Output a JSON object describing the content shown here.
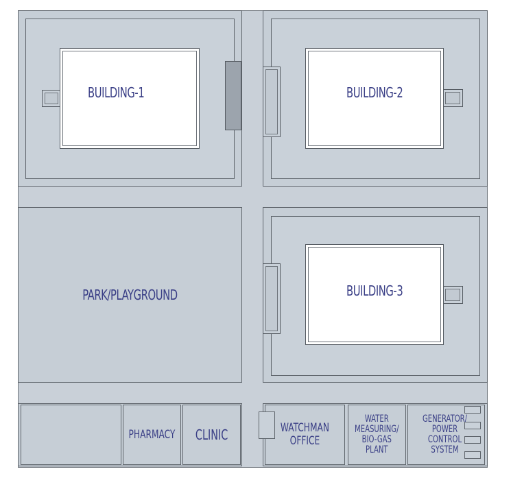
{
  "buildings": {
    "b1": "BUILDING-1",
    "b2": "BUILDING-2",
    "b3": "BUILDING-3"
  },
  "park": "PARK/PLAYGROUND",
  "rooms": {
    "pharmacy": "PHARMACY",
    "clinic": "CLINIC",
    "watchman": [
      "WATCHMAN",
      "OFFICE"
    ],
    "water": [
      "WATER",
      "MEASURING/",
      "BIO-GAS",
      "PLANT"
    ],
    "generator": [
      "GENERATOR/",
      "POWER CONTROL",
      "SYSTEM"
    ]
  },
  "colors": {
    "fill": "#c9d0d8",
    "line": "#5e646b",
    "text": "#3a3f86",
    "building": "#ffffff"
  }
}
